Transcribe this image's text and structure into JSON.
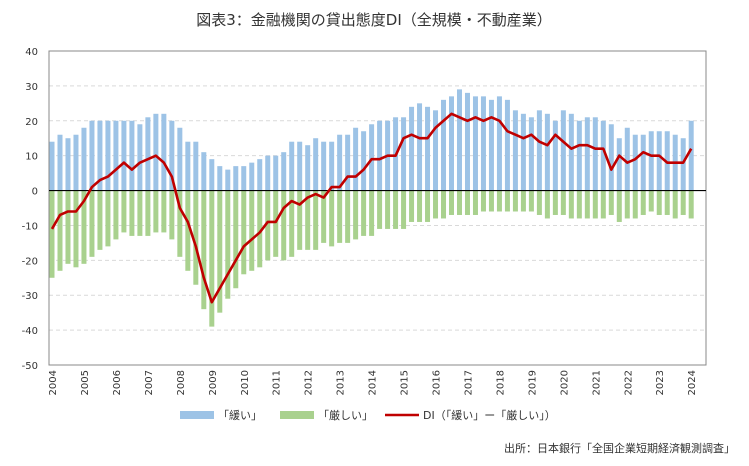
{
  "chart_data": {
    "type": "bar",
    "title": "図表3：金融機関の貸出態度DI（全規模・不動産業）",
    "source": "出所：日本銀行「全国企業短期経済観測調査」",
    "ylim": [
      -50,
      40
    ],
    "yticks": [
      40,
      30,
      20,
      10,
      0,
      -10,
      -20,
      -30,
      -40,
      -50
    ],
    "xticks": [
      "2004",
      "2005",
      "2006",
      "2007",
      "2008",
      "2009",
      "2010",
      "2011",
      "2012",
      "2013",
      "2014",
      "2015",
      "2016",
      "2017",
      "2018",
      "2019",
      "2020",
      "2021",
      "2022",
      "2023",
      "2024"
    ],
    "x_start": "2004Q1",
    "frequency": "quarterly",
    "grid": true,
    "legend": "bottom",
    "series": [
      {
        "name": "「緩い」",
        "type": "bar",
        "color": "#9dc3e6",
        "values": [
          14,
          16,
          15,
          16,
          18,
          20,
          20,
          20,
          20,
          20,
          20,
          19,
          21,
          22,
          22,
          20,
          18,
          14,
          14,
          11,
          9,
          7,
          6,
          7,
          7,
          8,
          9,
          10,
          10,
          11,
          14,
          14,
          13,
          15,
          14,
          14,
          16,
          16,
          18,
          17,
          19,
          20,
          20,
          21,
          21,
          24,
          25,
          24,
          23,
          26,
          27,
          29,
          28,
          27,
          27,
          26,
          27,
          26,
          23,
          22,
          21,
          23,
          22,
          20,
          23,
          22,
          20,
          21,
          21,
          20,
          19,
          15,
          18,
          16,
          16,
          17,
          17,
          17,
          16,
          15,
          20
        ]
      },
      {
        "name": "「厳しい」",
        "type": "bar",
        "color": "#a9d18e",
        "values": [
          -25,
          -23,
          -21,
          -22,
          -21,
          -19,
          -17,
          -16,
          -14,
          -12,
          -13,
          -13,
          -13,
          -12,
          -12,
          -14,
          -19,
          -23,
          -27,
          -34,
          -39,
          -35,
          -31,
          -28,
          -24,
          -23,
          -22,
          -20,
          -19,
          -20,
          -19,
          -17,
          -17,
          -17,
          -15,
          -16,
          -15,
          -15,
          -14,
          -13,
          -13,
          -11,
          -11,
          -11,
          -11,
          -9,
          -9,
          -9,
          -8,
          -8,
          -7,
          -7,
          -7,
          -7,
          -6,
          -6,
          -6,
          -6,
          -6,
          -6,
          -6,
          -7,
          -8,
          -7,
          -7,
          -8,
          -8,
          -8,
          -8,
          -8,
          -7,
          -9,
          -8,
          -8,
          -7,
          -6,
          -7,
          -7,
          -8,
          -7,
          -8
        ]
      },
      {
        "name": "DI（「緩い」ー「厳しい」）",
        "type": "line",
        "color": "#c00000",
        "values": [
          -11,
          -7,
          -6,
          -6,
          -3,
          1,
          3,
          4,
          6,
          8,
          6,
          8,
          9,
          10,
          8,
          4,
          -5,
          -9,
          -16,
          -25,
          -32,
          -28,
          -24,
          -20,
          -16,
          -14,
          -12,
          -9,
          -9,
          -5,
          -3,
          -4,
          -2,
          -1,
          -2,
          1,
          1,
          4,
          4,
          6,
          9,
          9,
          10,
          10,
          15,
          16,
          15,
          15,
          18,
          20,
          22,
          21,
          20,
          21,
          20,
          21,
          20,
          17,
          16,
          15,
          16,
          14,
          13,
          16,
          14,
          12,
          13,
          13,
          12,
          12,
          6,
          10,
          8,
          9,
          11,
          10,
          10,
          8,
          8,
          8,
          12
        ]
      }
    ]
  }
}
